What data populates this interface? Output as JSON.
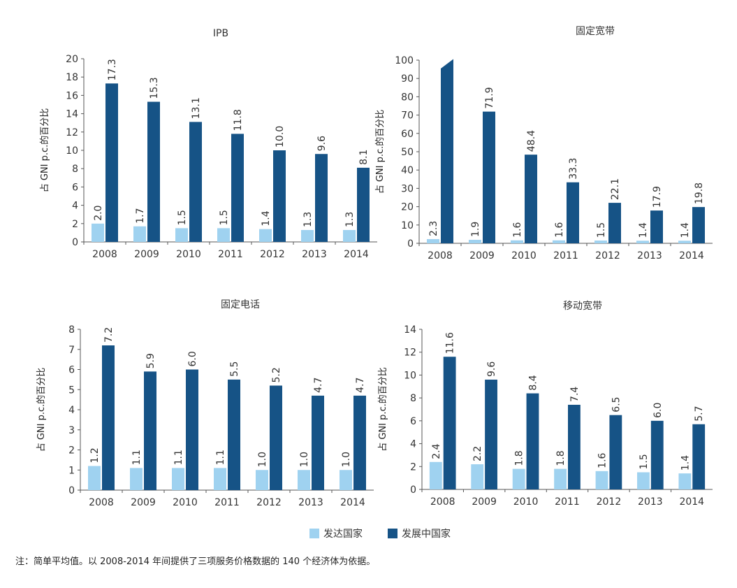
{
  "colors": {
    "developed": "#9fd2f0",
    "developing": "#165386",
    "axis": "#555555"
  },
  "legend": {
    "developed": "发达国家",
    "developing": "发展中国家"
  },
  "note": "注：简单平均值。以 2008-2014 年间提供了三项服务价格数据的 140 个经济体为依据。",
  "chart_data": [
    {
      "type": "bar",
      "title": "IPB",
      "ylabel": "占 GNI p.c.的百分比",
      "xlabel": "",
      "categories": [
        "2008",
        "2009",
        "2010",
        "2011",
        "2012",
        "2013",
        "2014"
      ],
      "ylim": [
        0,
        20
      ],
      "yticks": [
        0,
        2,
        4,
        6,
        8,
        10,
        12,
        14,
        16,
        18,
        20
      ],
      "series": [
        {
          "name": "发达国家",
          "values": [
            2.0,
            1.7,
            1.5,
            1.5,
            1.4,
            1.3,
            1.3
          ],
          "labels": [
            "2.0",
            "1.7",
            "1.5",
            "1.5",
            "1.4",
            "1.3",
            "1.3"
          ]
        },
        {
          "name": "发展中国家",
          "values": [
            17.3,
            15.3,
            13.1,
            11.8,
            10.0,
            9.6,
            8.1
          ],
          "labels": [
            "17.3",
            "15.3",
            "13.1",
            "11.8",
            "10.0",
            "9.6",
            "8.1"
          ]
        }
      ]
    },
    {
      "type": "bar",
      "title": "固定宽带",
      "ylabel": "占 GNI p.c.的百分比",
      "xlabel": "",
      "categories": [
        "2008",
        "2009",
        "2010",
        "2011",
        "2012",
        "2013",
        "2014"
      ],
      "ylim": [
        0,
        100
      ],
      "yticks": [
        0,
        10,
        20,
        30,
        40,
        50,
        60,
        70,
        80,
        90,
        100
      ],
      "truncated_first_bar": true,
      "series": [
        {
          "name": "发达国家",
          "values": [
            2.3,
            1.9,
            1.6,
            1.6,
            1.5,
            1.4,
            1.4
          ],
          "labels": [
            "2.3",
            "1.9",
            "1.6",
            "1.6",
            "1.5",
            "1.4",
            "1.4"
          ]
        },
        {
          "name": "发展中国家",
          "values": [
            100,
            71.9,
            48.4,
            33.3,
            22.1,
            17.9,
            19.8
          ],
          "labels": [
            "",
            "71.9",
            "48.4",
            "33.3",
            "22.1",
            "17.9",
            "19.8"
          ]
        }
      ]
    },
    {
      "type": "bar",
      "title": "固定电话",
      "ylabel": "占 GNI p.c.的百分比",
      "xlabel": "",
      "categories": [
        "2008",
        "2009",
        "2010",
        "2011",
        "2012",
        "2013",
        "2014"
      ],
      "ylim": [
        0,
        8
      ],
      "yticks": [
        0,
        1,
        2,
        3,
        4,
        5,
        6,
        7,
        8
      ],
      "series": [
        {
          "name": "发达国家",
          "values": [
            1.2,
            1.1,
            1.1,
            1.1,
            1.0,
            1.0,
            1.0
          ],
          "labels": [
            "1.2",
            "1.1",
            "1.1",
            "1.1",
            "1.0",
            "1.0",
            "1.0"
          ]
        },
        {
          "name": "发展中国家",
          "values": [
            7.2,
            5.9,
            6.0,
            5.5,
            5.2,
            4.7,
            4.7
          ],
          "labels": [
            "7.2",
            "5.9",
            "6.0",
            "5.5",
            "5.2",
            "4.7",
            "4.7"
          ]
        }
      ]
    },
    {
      "type": "bar",
      "title": "移动宽带",
      "ylabel": "占 GNI p.c.的百分比",
      "xlabel": "",
      "categories": [
        "2008",
        "2009",
        "2010",
        "2011",
        "2012",
        "2013",
        "2014"
      ],
      "ylim": [
        0,
        14
      ],
      "yticks": [
        0,
        2,
        4,
        6,
        8,
        10,
        12,
        14
      ],
      "series": [
        {
          "name": "发达国家",
          "values": [
            2.4,
            2.2,
            1.8,
            1.8,
            1.6,
            1.5,
            1.4
          ],
          "labels": [
            "2.4",
            "2.2",
            "1.8",
            "1.8",
            "1.6",
            "1.5",
            "1.4"
          ]
        },
        {
          "name": "发展中国家",
          "values": [
            11.6,
            9.6,
            8.4,
            7.4,
            6.5,
            6.0,
            5.7
          ],
          "labels": [
            "11.6",
            "9.6",
            "8.4",
            "7.4",
            "6.5",
            "6.0",
            "5.7"
          ]
        }
      ]
    }
  ]
}
